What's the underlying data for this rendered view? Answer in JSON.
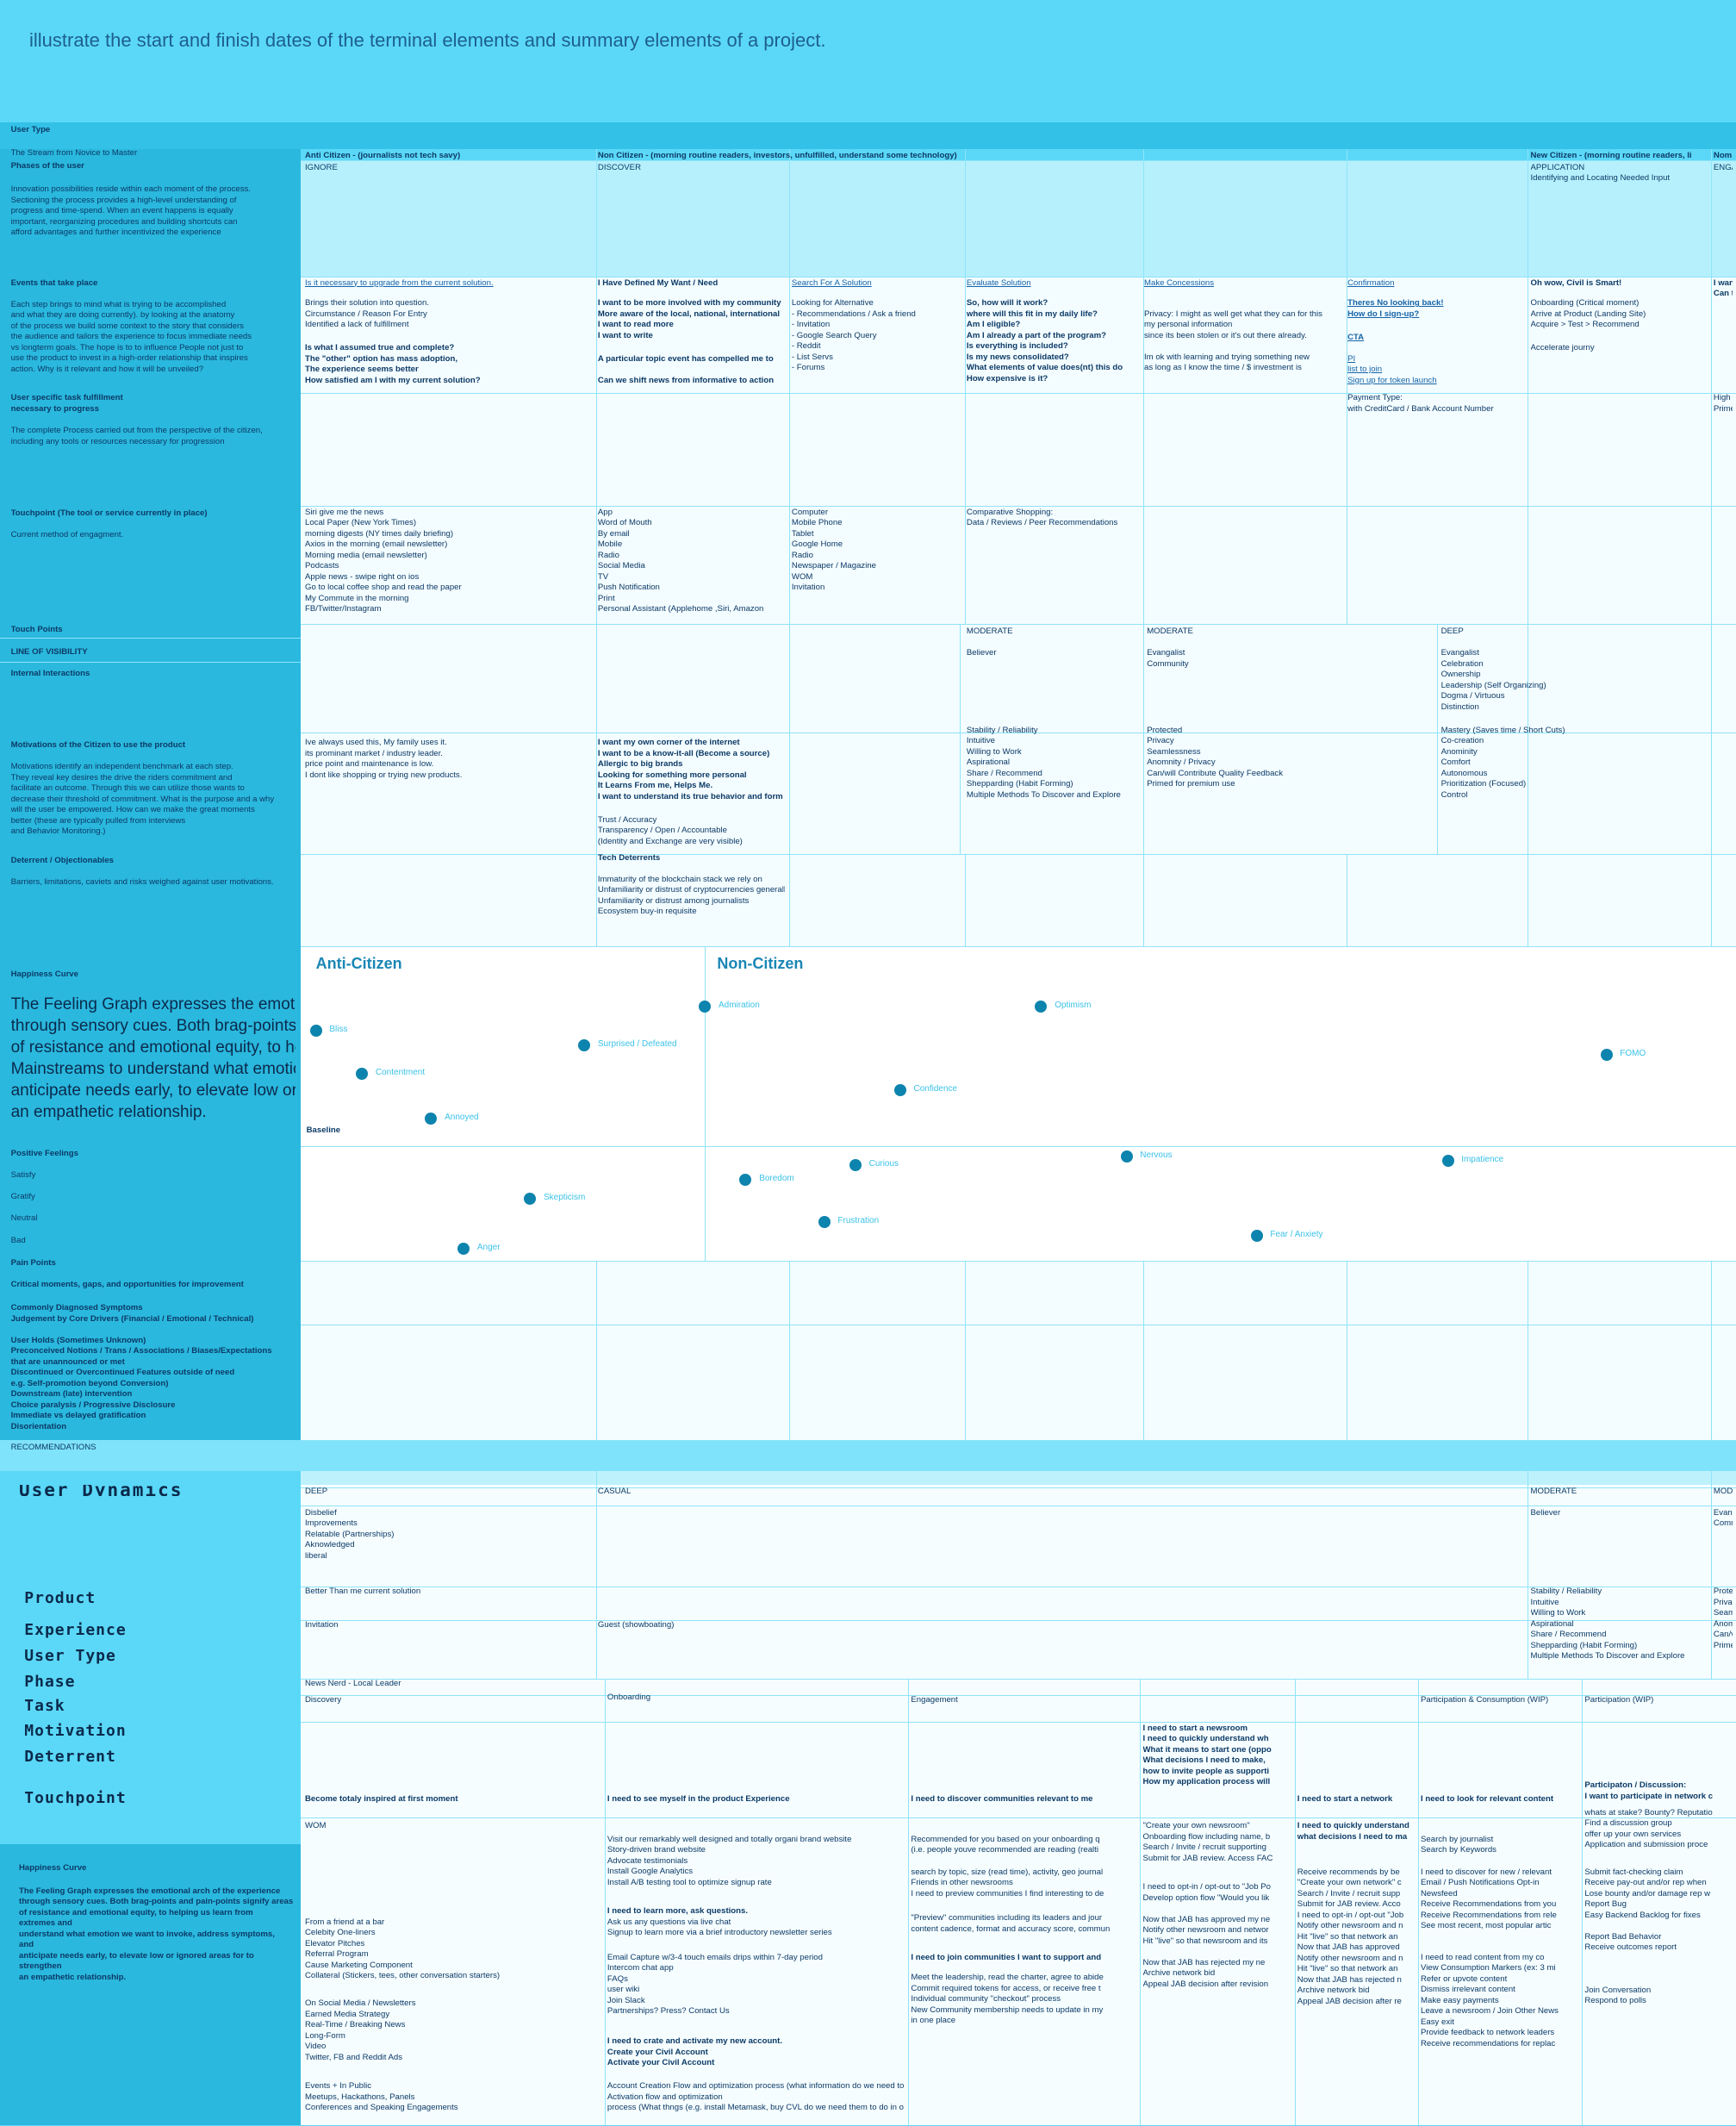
{
  "header": {
    "title": "illustrate the start and finish dates of the terminal elements and summary elements of a project."
  },
  "sidebar": [
    "User Type",
    "The Stream from Novice to Master",
    "Phases of the user",
    "Innovation possibilities reside within each moment of the process.\nSectioning the process provides a high-level understanding of\nprogress and time-spend. When an event happens is equally\nimportant, reorganizing procedures and building shortcuts can\nafford advantages and further incentivized the experience",
    "Events that take place",
    "Each step brings to mind what is trying to be accomplished\nand what they are doing currently). by looking at the anatomy\nof the process we build some context to the story that considers\nthe audience and tailors the experience to focus immediate needs\nvs longterm goals. The hope is to to influence People not just to\nuse the product to invest in a high-order relationship that inspires\naction. Why is it relevant and how it will be unveiled?",
    "User specific task fulfillment\nnecessary to progress",
    "The complete Process carried out from the perspective of the citizen,\nincluding any tools or resources necessary for progression",
    "Touchpoint (The tool or service currently in place)",
    "Current method of engagment.",
    "Touch Points",
    "LINE OF VISIBILITY",
    "Internal Interactions",
    "Motivations of the Citizen to use the product",
    "Motivations identify an independent benchmark at each step.\nThey reveal key desires the drive the riders commitment and\nfacilitate an outcome. Through this we can utilize those wants to\ndecrease their threshold of commitment. What is the purpose and a why\nwill the user be empowered. How can we make the great moments\nbetter (these are typically pulled from interviews\nand Behavior Monitoring.)",
    "Deterrent / Objectionables",
    "Barriers, limitations, caviets and risks weighed against user motivations.",
    "Happiness Curve",
    "The Feeling Graph expresses the emotional arch of the experience\nthrough sensory cues. Both brag-points and pain-points signify areas\nof resistance and emotional equity, to help\nMainstreams to understand what emotion we want to invoke,\nanticipate needs early, to elevate low or ignored areas to strengthen\nan empathetic relationship.",
    "Positive Feelings",
    "Satisfy",
    "Gratify",
    "Neutral",
    "Bad",
    "Pain Points",
    "Critical moments, gaps, and opportunities for improvement",
    "Commonly Diagnosed Symptoms\nJudgement by Core Drivers (Financial / Emotional / Technical)",
    "User Holds (Sometimes Unknown)\nPreconceived Notions / Trans / Associations / Biases/Expectations\nthat are unannounced or met\nDiscontinued or Overcontinued Features outside of need\ne.g. Self-promotion beyond Conversion)\nDownstream (late) intervention\nChoice paralysis / Progressive Disclosure\nImmediate vs delayed gratification\nDisorientation",
    "RECOMMENDATIONS",
    "User Dynamics",
    "Product",
    "Experience",
    "User Type",
    "Phase",
    "Task",
    "Motivation",
    "Deterrent",
    "Touchpoint",
    "Happiness Curve",
    "The Feeling Graph expresses the emotional arch of the experience\nthrough sensory cues. Both brag-points and pain-points signify areas\nof resistance and emotional equity, to helping us learn from\nextremes and\nunderstand what emotion we want to invoke, address symptoms,\nand\nanticipate needs early, to elevate low or ignored areas for to\nstrengthen\nan empathetic relationship."
  ],
  "cells": [
    "Anti Citizen - (journalists not tech savy)",
    "Non Citizen - (morning routine readers, investors, unfulfilled, understand some technology)",
    "New Citizen - (morning routine readers, li",
    "Nom",
    "IGNORE",
    "DISCOVER",
    "APPLICATION\nIdentifying and Locating Needed Input",
    "ENGA",
    "Is it necessary to upgrade from the current solution.",
    "Brings their solution into question.\nCircumstance / Reason For Entry\nIdentified a lack of fulfillment",
    "Is what I assumed true and complete?\nThe \"other\" option has mass adoption,\nThe experience seems better\nHow satisfied am I with my current solution?",
    "I Have Defined My Want / Need",
    "I want to be more involved with my community\nMore aware of the local, national, international\nI want to read more\nI want to write",
    "A particular topic event has compelled me to",
    "Can we shift news from informative to action",
    "Search For A Solution",
    "Looking for Alternative\n- Recommendations / Ask a friend\n- Invitation\n- Google Search Query\n- Reddit\n- List Servs\n- Forums",
    "Evaluate Solution",
    "So, how will it work?\nwhere will this fit in my daily life?\nAm I eligible?\nAm I already a part of the program?\nIs everything is included?\nIs my news consolidated?\nWhat elements of value does(nt) this do\nHow expensive is it?",
    "Make Concessions",
    "Privacy: I might as well get what they can for this\nmy personal information\nsince its been stolen or it's out there already.\n\nIm ok with learning and trying something new\nas long as I know the time / $ investment is",
    "Confirmation",
    "Theres No looking back!\nHow do I sign-up?",
    "CTA",
    "PI\nlist to join\nSign up for token launch",
    "Oh wow, Civil is Smart!",
    "Onboarding (Critical moment)\nArrive at Product (Landing Site)\nAcquire > Test > Recommend",
    "Accelerate journy",
    "I wan\nCan t",
    "Payment Type:\nwith CreditCard / Bank Account Number",
    "High\nPrime",
    "Siri give me the news\nLocal Paper (New York Times)\nmorning digests (NY times daily briefing)\nAxios in the morning (email newsletter)\nMorning media (email newsletter)\nPodcasts\nApple news - swipe right on ios\nGo to local coffee shop and read the paper\nMy Commute in the morning\nFB/Twitter/Instagram",
    "App\nWord of Mouth\nBy email\nMobile\nRadio\nSocial Media\nTV\nPush Notification\nPrint\nPersonal Assistant (Applehome ,Siri, Amazon",
    "Computer\nMobile Phone\nTablet\nGoogle Home\nRadio\nNewspaper / Magazine\nWOM\nInvitation",
    "Comparative Shopping:\nData / Reviews / Peer Recommendations",
    "MODERATE",
    "Believer",
    "MODERATE",
    "Evangalist\nCommunity",
    "DEEP",
    "Evangalist\nCelebration\nOwnership\nLeadership (Self Organizing)\nDogma / Virtuous\nDistinction",
    "Stability / Reliability\nIntuitive\nWilling to Work\nAspirational\nShare / Recommend\nShepparding (Habit Forming)\nMultiple Methods To Discover and Explore",
    "Protected\nPrivacy\nSeamlessness\nAnomnity / Privacy\nCan/will Contribute Quality Feedback\nPrimed for premium use",
    "Mastery (Saves time / Short Cuts)\nCo-creation\nAnominity\nComfort\nAutonomous\nPrioritization (Focused)\nControl",
    "Ive always used this, My family uses it.\nits prominant market / industry leader.\nprice point and maintenance is low.\nI dont like shopping or trying new products.",
    "I want my own corner of the internet\nI want to be a know-it-all (Become a source)\nAllergic to big brands\nLooking for something more personal\nIt Learns From me, Helps Me.\nI want to understand its true behavior and form as soon as possible",
    "Trust / Accuracy\nTransparency / Open / Accountable\n(Identity and Exchange are very visible)",
    "Tech Deterrents",
    "Immaturity of the blockchain stack we rely on\nUnfamiliarity or distrust of cryptocurrencies generally among mainstream users\nUnfamiliarity or distrust among journalists\nEcosystem buy-in requisite",
    "DEEP",
    "CASUAL",
    "MODERATE",
    "MOD",
    "Disbelief\nImprovements\nRelatable (Partnerships)\nAknowledged\nliberal",
    "Believer",
    "Evan\nComm",
    "Better Than me current solution",
    "Stability / Reliability\nIntuitive\nWilling to Work\nAspirational\nShare / Recommend\nShepparding (Habit Forming)\nMultiple Methods To Discover and Explore",
    "Prote\nPriva\nSeam\nAnom\nCan/v\nPrime",
    "Invitation",
    "Guest (showboating)",
    "News Nerd - Local Leader",
    "Discovery",
    "Onboarding",
    "Engagement",
    "Participation & Consumption (WIP)",
    "Participation (WIP)",
    "I need to start a newsroom\nI need to quickly understand wh\nWhat it means to start one (oppo\nWhat decisions I need to make,\nhow to invite people as supporti\nHow my application process will",
    "Become totaly inspired at first moment",
    "I need to see myself in the product Experience",
    "I need to discover communities relevant to me",
    "I need to start a network",
    "I need to look for relevant content",
    "Participaton / Discussion:\nI want to participate in network c",
    "WOM",
    "I need to quickly understand\nwhat decisions I need to ma",
    "whats at stake? Bounty? Reputatio\nFind a discussion group\noffer up your own services\nApplication and submission proce",
    "Visit our remarkably well designed and totally organi brand website\nStory-driven brand website\nAdvocate testimonials\nInstall Google Analytics\nInstall A/B testing tool to optimize signup rate",
    "Recommended for you based on your onboarding q\n(i.e. people youve recommended are reading (realti",
    "\"Create your own newsroom\"\nOnboarding flow including name, b\nSearch / Invite / recruit supporting\nSubmit for JAB review. Access FAC",
    "Search by journalist\nSearch by Keywords",
    "search by topic, size (read time), activity, geo journal\nFriends in other newsrooms\nI need to preview communities I find interesting to de",
    "I need to opt-in / opt-out to \"Job Po\nDevelop option flow \"Would you lik\n\nNow that JAB has approved my ne\nNotify other newsroom and networ\nHit \"live\" so that newsroom and its\n\nNow that JAB has rejected my ne\nArchive network bid\nAppeal JAB decision after revision",
    "Receive recommends by be\n\"Create your own network\" c\nSearch / Invite / recruit supp\nSubmit for JAB review. Acco\nI need to opt-in / opt-out \"Job\nNotify other newsroom and n\nHit \"live\" so that network an\nNow that JAB has approved\nNotify other newsroom and n\nHit \"live\" so that network an\nNow that JAB has rejected n\nArchive network bid\nAppeal JAB decision after re",
    "I need to discover for new / relevant\nEmail / Push Notifications Opt-in\nNewsfeed\nReceive Recommendations from you\nReceive Recommendations from rele\nSee most recent, most popular artic",
    "Submit fact-checking claim\nReceive pay-out and/or rep when\nLose bounty and/or damage rep w\nReport Bug\nEasy Backend Backlog for fixes\n\nReport Bad Behavior\nReceive outcomes report",
    "I need to learn more, ask questions.",
    "Ask us any questions via live chat\nSignup to learn more via a brief introductory newsletter series",
    "\"Preview\" communities including its leaders and jour\ncontent cadence, format and accuracy score, commun",
    "From a friend at a bar\nCelebity One-liners\nElevator Pitches\nReferral Program\nCause Marketing Component\nCollateral (Stickers, tees, other conversation starters)",
    "Email Capture w/3-4 touch emails drips within 7-day period\nIntercom chat app\nFAQs\nuser wiki\nJoin Slack\nPartnerships? Press? Contact Us",
    "I need to join communities I want to support and",
    "Meet the leadership, read the charter, agree to abide\nCommit required tokens for access, or receive free t\nIndividual community \"checkout\" process\nNew Community membership needs to update in my\nin one place",
    "I need to read content from my co\nView Consumption Markers (ex: 3 mi\nRefer or upvote content\nDismiss irrelevant content\nMake easy payments\nLeave a newsroom / Join Other News\nEasy exit\nProvide feedback to network leaders\nReceive recommendations for replac",
    "Join Conversation\nRespond to polls",
    "On Social Media / Newsletters\nEarned Media Strategy\nReal-Time / Breaking News\nLong-Form\nVideo\nTwitter, FB and Reddit Ads",
    "I need to crate and activate my new account.\nCreate your Civil Account\nActivate your Civil Account",
    "Account Creation Flow and optimization process (what information do we need to capture?)\nActivation flow and optimization\nprocess (What thngs (e.g. install Metamask, buy CVL do we need them to do in order to active)",
    "Events + In Public\nMeetups, Hackathons, Panels\nConferences and Speaking Engagements"
  ],
  "curve": {
    "segments": [
      "Anti-Citizen",
      "Non-Citizen"
    ],
    "baseline": "Baseline",
    "points": [
      "Bliss",
      "Surprised / Defeated",
      "Contentment",
      "Annoyed",
      "Skepticism",
      "Anger",
      "Admiration",
      "Optimism",
      "Confidence",
      "FOMO",
      "Nervous",
      "Curious",
      "Boredom",
      "Impatience",
      "Frustration",
      "Fear / Anxiety"
    ]
  }
}
